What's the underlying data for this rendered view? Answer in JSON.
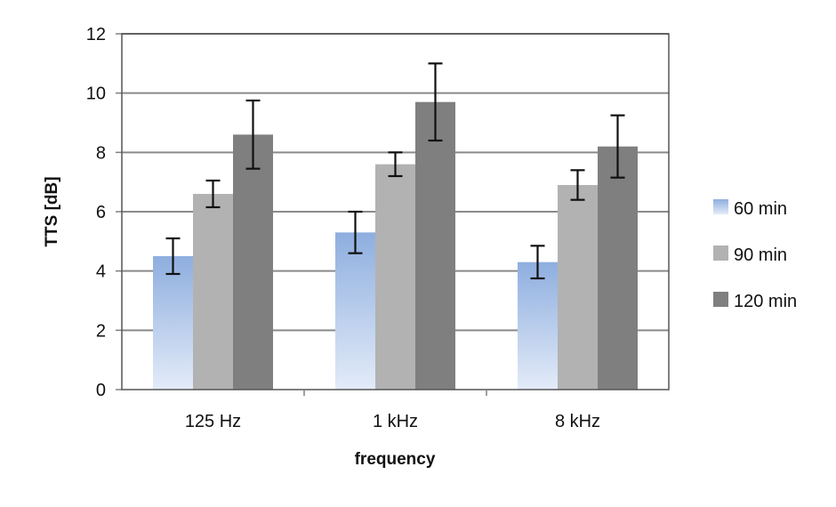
{
  "chart_data": {
    "type": "bar",
    "title": "",
    "xlabel": "frequency",
    "ylabel": "TTS [dB]",
    "categories": [
      "125  Hz",
      "1 kHz",
      "8 kHz"
    ],
    "ylim": [
      0,
      12
    ],
    "yticks": [
      0,
      2,
      4,
      6,
      8,
      10,
      12
    ],
    "grid": true,
    "legend_position": "right",
    "series": [
      {
        "name": "60 min",
        "color": "#9bb7e0",
        "values": [
          4.5,
          5.3,
          4.3
        ],
        "errors": [
          0.6,
          0.7,
          0.55
        ]
      },
      {
        "name": "90 min",
        "color": "#b2b2b2",
        "values": [
          6.6,
          7.6,
          6.9
        ],
        "errors": [
          0.45,
          0.4,
          0.5
        ]
      },
      {
        "name": "120 min",
        "color": "#7f7f7f",
        "values": [
          8.6,
          9.7,
          8.2
        ],
        "errors": [
          1.15,
          1.3,
          1.05
        ]
      }
    ]
  }
}
